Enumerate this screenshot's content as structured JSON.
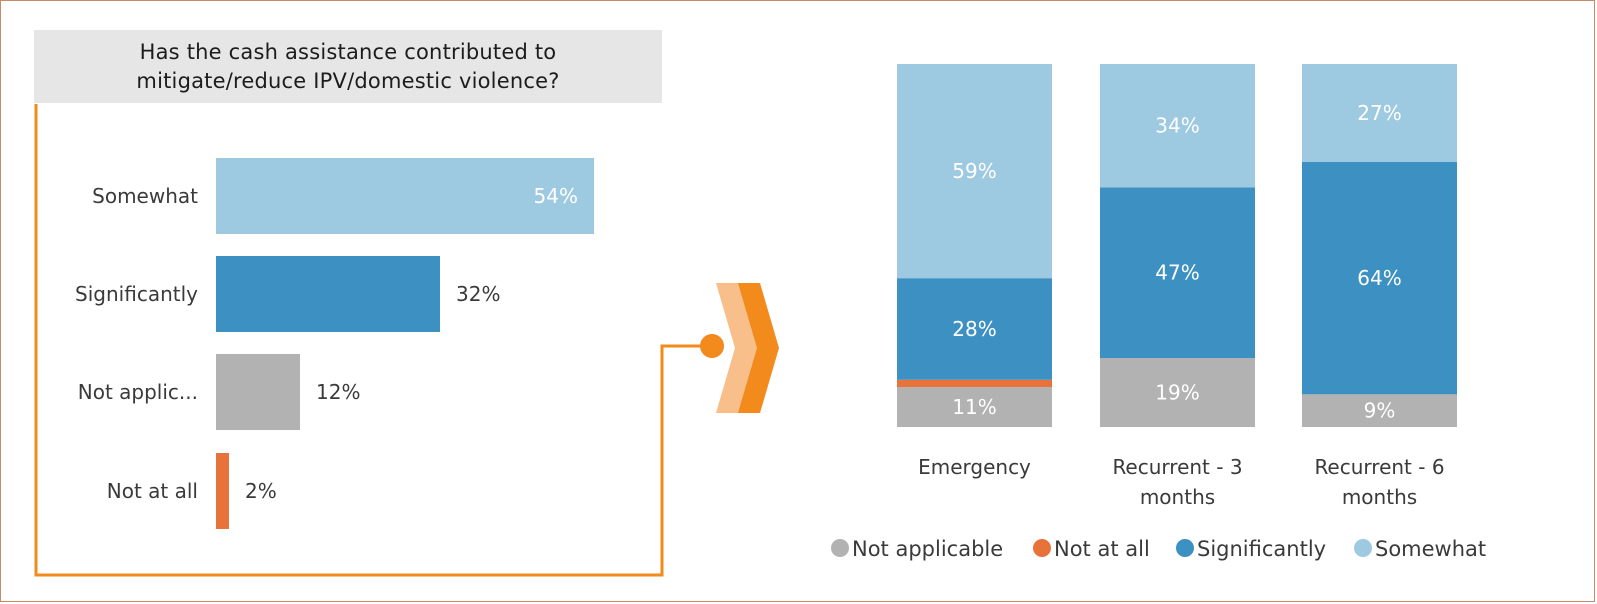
{
  "colors": {
    "somewhat": "#9ecae1",
    "significantly": "#3d91c2",
    "not_applicable": "#b2b2b2",
    "not_at_all": "#e8733a",
    "accent": "#f28a1c",
    "accent_light": "#f8bf8a"
  },
  "chart_data": [
    {
      "type": "bar",
      "orientation": "horizontal",
      "title": "Has the cash assistance contributed to mitigate/reduce IPV/domestic violence?",
      "title_lines": [
        "Has the cash assistance contributed to",
        "mitigate/reduce IPV/domestic violence?"
      ],
      "categories": [
        "Somewhat",
        "Significantly",
        "Not applic...",
        "Not at all"
      ],
      "values": [
        54,
        32,
        12,
        2
      ],
      "value_labels": [
        "54%",
        "32%",
        "12%",
        "2%"
      ],
      "xlim": [
        0,
        100
      ],
      "grid": false
    },
    {
      "type": "bar",
      "stacked": true,
      "categories": [
        "Emergency",
        "Recurrent - 3 months",
        "Recurrent - 6 months"
      ],
      "category_lines": [
        [
          "Emergency"
        ],
        [
          "Recurrent - 3",
          "months"
        ],
        [
          "Recurrent - 6",
          "months"
        ]
      ],
      "series": [
        {
          "name": "Not applicable",
          "values": [
            11,
            19,
            9
          ],
          "labels": [
            "11%",
            "19%",
            "9%"
          ]
        },
        {
          "name": "Not at all",
          "values": [
            2,
            0,
            0
          ],
          "labels": [
            "",
            "",
            ""
          ]
        },
        {
          "name": "Significantly",
          "values": [
            28,
            47,
            64
          ],
          "labels": [
            "28%",
            "47%",
            "64%"
          ]
        },
        {
          "name": "Somewhat",
          "values": [
            59,
            34,
            27
          ],
          "labels": [
            "59%",
            "34%",
            "27%"
          ]
        }
      ],
      "ylim": [
        0,
        100
      ],
      "legend_position": "bottom",
      "grid": false
    }
  ]
}
